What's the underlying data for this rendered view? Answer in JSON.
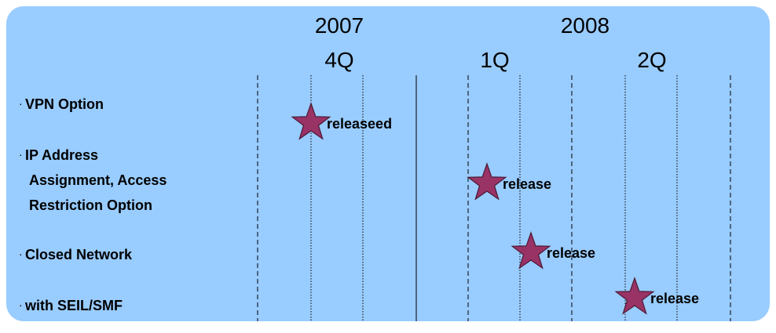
{
  "timeline": {
    "periods": [
      {
        "year": "2007",
        "quarter": "4Q"
      },
      {
        "year": "2008",
        "quarters": [
          "1Q",
          "2Q"
        ]
      }
    ],
    "rows": [
      {
        "lines": [
          "VPN Option"
        ],
        "milestone": "releaseed"
      },
      {
        "lines": [
          "IP Address",
          "Assignment,  Access",
          "Restriction Option"
        ],
        "milestone": "release"
      },
      {
        "lines": [
          "Closed Network"
        ],
        "milestone": "release"
      },
      {
        "lines": [
          "with SEIL/SMF"
        ],
        "milestone": "release"
      }
    ]
  }
}
